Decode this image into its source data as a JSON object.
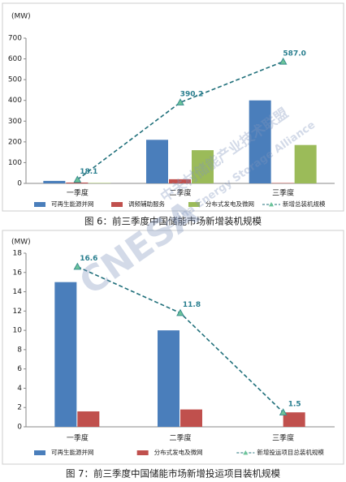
{
  "chart_data": [
    {
      "type": "bar",
      "caption": "图 6：前三季度中国储能市场新增装机规模",
      "y_label": "(MW)",
      "categories": [
        "一季度",
        "二季度",
        "三季度"
      ],
      "series": [
        {
          "name": "可再生能源并网",
          "color": "#4a7ebb",
          "values": [
            12,
            210,
            400
          ]
        },
        {
          "name": "调频辅助服务",
          "color": "#c0504d",
          "values": [
            4,
            20,
            2
          ]
        },
        {
          "name": "分布式发电及微网",
          "color": "#9bbb59",
          "values": [
            2,
            160,
            185
          ]
        },
        {
          "name": "新增总装机规模",
          "type": "line",
          "color": "#1f6f7a",
          "values": [
            18.1,
            390.2,
            587.0
          ],
          "value_labels": [
            "18.1",
            "390.2",
            "587.0"
          ]
        }
      ],
      "ylim": [
        0,
        700
      ],
      "yticks": [
        0,
        100,
        200,
        300,
        400,
        500,
        600,
        700
      ]
    },
    {
      "type": "bar",
      "caption": "图 7：前三季度中国储能市场新增投运项目装机规模",
      "y_label": "(MW)",
      "categories": [
        "一季度",
        "二季度",
        "三季度"
      ],
      "series": [
        {
          "name": "可再生能源并网",
          "color": "#4a7ebb",
          "values": [
            15,
            10,
            0
          ]
        },
        {
          "name": "分布式发电及微网",
          "color": "#c0504d",
          "values": [
            1.6,
            1.8,
            1.5
          ]
        },
        {
          "name": "新增投运项目总装机规模",
          "type": "line",
          "color": "#1f6f7a",
          "values": [
            16.6,
            11.8,
            1.5
          ]
        }
      ],
      "ylim": [
        0,
        18
      ],
      "yticks": [
        0,
        2,
        4,
        6,
        8,
        10,
        12,
        14,
        16,
        18
      ]
    }
  ],
  "watermark": {
    "logo": "CNESA",
    "name_cn": "中关村储能产业技术联盟",
    "name_en": "China Energy Storage Alliance"
  }
}
